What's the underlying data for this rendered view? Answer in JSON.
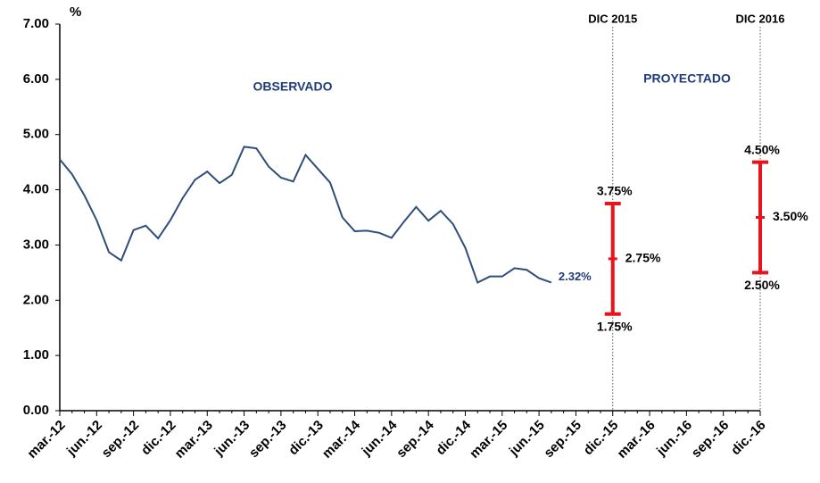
{
  "chart_data": {
    "type": "line",
    "y_unit_label": "%",
    "color": "#2e4d7b",
    "categories": [
      "mar.-12",
      null,
      null,
      "jun.-12",
      null,
      null,
      "sep.-12",
      null,
      null,
      "dic.-12",
      null,
      null,
      "mar.-13",
      null,
      null,
      "jun.-13",
      null,
      null,
      "sep.-13",
      null,
      null,
      "dic.-13",
      null,
      null,
      "mar.-14",
      null,
      null,
      "jun.-14",
      null,
      null,
      "sep.-14",
      null,
      null,
      "dic.-14",
      null,
      null,
      "mar.-15",
      null,
      null,
      "jun.-15",
      null,
      null,
      "sep.-15",
      null,
      null,
      "dic.-15",
      null,
      null,
      "mar.-16",
      null,
      null,
      "jun.-16",
      null,
      null,
      "sep.-16",
      null,
      null,
      "dic.-16"
    ],
    "values": [
      4.55,
      4.28,
      3.9,
      3.45,
      2.87,
      2.72,
      3.27,
      3.35,
      3.12,
      3.45,
      3.85,
      4.18,
      4.33,
      4.12,
      4.27,
      4.78,
      4.75,
      4.42,
      4.22,
      4.15,
      4.63,
      4.38,
      4.13,
      3.5,
      3.25,
      3.26,
      3.22,
      3.13,
      3.42,
      3.69,
      3.44,
      3.62,
      3.38,
      2.95,
      2.32,
      2.43,
      2.43,
      2.58,
      2.55,
      2.4,
      2.32,
      null,
      null,
      null,
      null,
      null,
      null,
      null,
      null,
      null,
      null,
      null,
      null,
      null,
      null,
      null,
      null,
      null
    ],
    "value_labels": [
      null,
      null,
      null,
      null,
      null,
      null,
      null,
      null,
      null,
      null,
      null,
      null,
      null,
      null,
      null,
      null,
      null,
      null,
      null,
      null,
      null,
      null,
      null,
      null,
      null,
      null,
      null,
      null,
      null,
      null,
      null,
      null,
      null,
      null,
      null,
      null,
      null,
      null,
      null,
      null,
      "2.32%",
      null,
      null,
      null,
      null,
      null,
      null,
      null,
      null,
      null,
      null,
      null,
      null,
      null,
      null,
      null,
      null,
      null
    ],
    "ylim": [
      0,
      7
    ],
    "yticks": [
      {
        "value": 0,
        "label": "0.00"
      },
      {
        "value": 1,
        "label": "1.00"
      },
      {
        "value": 2,
        "label": "2.00"
      },
      {
        "value": 3,
        "label": "3.00"
      },
      {
        "value": 4,
        "label": "4.00"
      },
      {
        "value": 5,
        "label": "5.00"
      },
      {
        "value": 6,
        "label": "6.00"
      },
      {
        "value": 7,
        "label": "7.00"
      }
    ],
    "annotations": [
      "OBSERVADO",
      "PROYECTADO"
    ],
    "projections": [
      {
        "marker_label": "DIC 2015",
        "category": "dic.-15",
        "color": "#e8141c",
        "low": 1.75,
        "mid": 2.75,
        "high": 3.75,
        "low_label": "1.75%",
        "mid_label": "2.75%",
        "high_label": "3.75%"
      },
      {
        "marker_label": "DIC 2016",
        "category": "dic.-16",
        "color": "#e8141c",
        "low": 2.5,
        "mid": 3.5,
        "high": 4.5,
        "low_label": "2.50%",
        "mid_label": "3.50%",
        "high_label": "4.50%"
      }
    ]
  }
}
